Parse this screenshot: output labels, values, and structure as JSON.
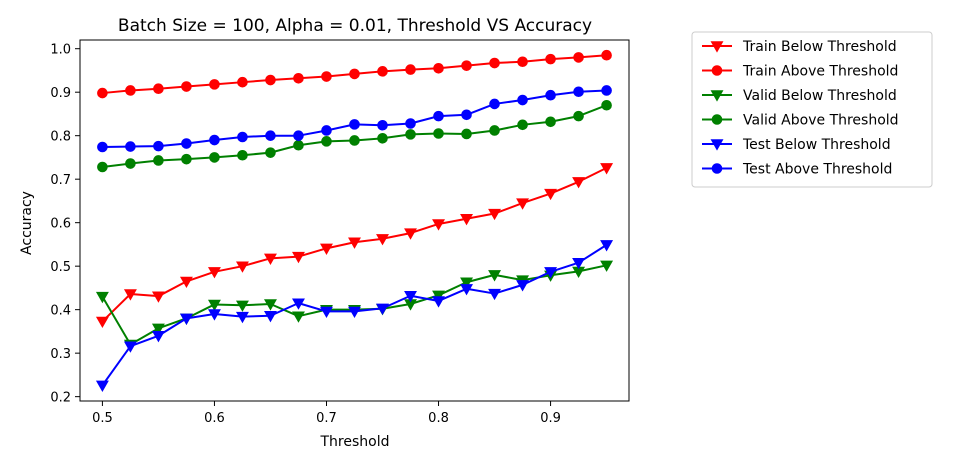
{
  "chart_data": {
    "type": "line",
    "title": "Batch Size = 100, Alpha = 0.01, Threshold VS Accuracy",
    "xlabel": "Threshold",
    "ylabel": "Accuracy",
    "xlim": [
      0.48,
      0.97
    ],
    "ylim": [
      0.19,
      1.02
    ],
    "xticks": [
      0.5,
      0.6,
      0.7,
      0.8,
      0.9
    ],
    "xtick_labels": [
      "0.5",
      "0.6",
      "0.7",
      "0.8",
      "0.9"
    ],
    "yticks": [
      0.2,
      0.3,
      0.4,
      0.5,
      0.6,
      0.7,
      0.8,
      0.9,
      1.0
    ],
    "ytick_labels": [
      "0.2",
      "0.3",
      "0.4",
      "0.5",
      "0.6",
      "0.7",
      "0.8",
      "0.9",
      "1.0"
    ],
    "grid": false,
    "legend_placement": "outside-right",
    "x": [
      0.5,
      0.525,
      0.55,
      0.575,
      0.6,
      0.625,
      0.65,
      0.675,
      0.7,
      0.725,
      0.75,
      0.775,
      0.8,
      0.825,
      0.85,
      0.875,
      0.9,
      0.925,
      0.95
    ],
    "series": [
      {
        "name": "Train Below Threshold",
        "color": "#ff0000",
        "marker": "triangle-down",
        "values": [
          0.373,
          0.436,
          0.431,
          0.465,
          0.487,
          0.5,
          0.518,
          0.522,
          0.541,
          0.555,
          0.563,
          0.576,
          0.597,
          0.609,
          0.621,
          0.645,
          0.667,
          0.694,
          0.726
        ]
      },
      {
        "name": "Train Above Threshold",
        "color": "#ff0000",
        "marker": "circle",
        "values": [
          0.898,
          0.904,
          0.908,
          0.913,
          0.918,
          0.923,
          0.928,
          0.932,
          0.936,
          0.942,
          0.948,
          0.952,
          0.955,
          0.961,
          0.967,
          0.97,
          0.976,
          0.98,
          0.985
        ]
      },
      {
        "name": "Valid Below Threshold",
        "color": "#008000",
        "marker": "triangle-down",
        "values": [
          0.43,
          0.32,
          0.357,
          0.38,
          0.412,
          0.41,
          0.413,
          0.385,
          0.4,
          0.4,
          0.402,
          0.413,
          0.433,
          0.463,
          0.48,
          0.468,
          0.479,
          0.488,
          0.502
        ]
      },
      {
        "name": "Valid Above Threshold",
        "color": "#008000",
        "marker": "circle",
        "values": [
          0.728,
          0.736,
          0.743,
          0.746,
          0.75,
          0.755,
          0.761,
          0.778,
          0.787,
          0.789,
          0.794,
          0.803,
          0.805,
          0.804,
          0.812,
          0.825,
          0.832,
          0.845,
          0.87
        ]
      },
      {
        "name": "Test Below Threshold",
        "color": "#0000ff",
        "marker": "triangle-down",
        "values": [
          0.226,
          0.316,
          0.34,
          0.38,
          0.39,
          0.384,
          0.386,
          0.415,
          0.396,
          0.396,
          0.403,
          0.432,
          0.42,
          0.448,
          0.437,
          0.457,
          0.487,
          0.508,
          0.549
        ]
      },
      {
        "name": "Test Above Threshold",
        "color": "#0000ff",
        "marker": "circle",
        "values": [
          0.774,
          0.775,
          0.776,
          0.782,
          0.79,
          0.797,
          0.8,
          0.8,
          0.812,
          0.826,
          0.824,
          0.828,
          0.845,
          0.848,
          0.873,
          0.882,
          0.893,
          0.901,
          0.904
        ]
      }
    ]
  }
}
